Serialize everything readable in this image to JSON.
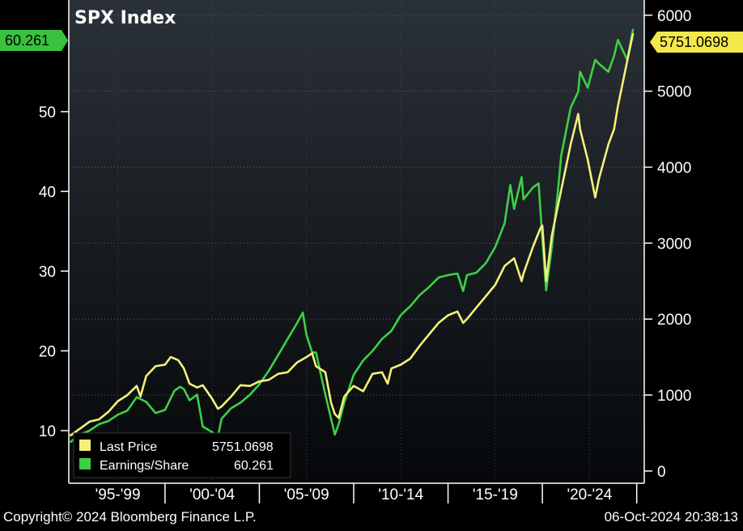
{
  "footer": {
    "copyright": "Copyright© 2024 Bloomberg Finance L.P.",
    "timestamp": "06-Oct-2024 20:38:13"
  },
  "colors": {
    "background": "#000000",
    "plot_top": "#2a3138",
    "plot_bottom": "#06080a",
    "price": "#f5ef7a",
    "eps": "#3fcf46",
    "eps_tag": "#39c23f",
    "price_tag": "#f2e84a"
  },
  "chart_data": {
    "type": "line",
    "title": "SPX Index",
    "x_axis": {
      "range": [
        1994.9,
        2025.4
      ],
      "period_labels": [
        "'95-'99",
        "'00-'04",
        "'05-'09",
        "'10-'14",
        "'15-'19",
        "'20-'24"
      ],
      "dividers": [
        2000,
        2005,
        2010,
        2015,
        2020,
        2025
      ]
    },
    "y_left": {
      "label": "",
      "range": [
        3.5,
        64
      ],
      "ticks": [
        10,
        20,
        30,
        40,
        50
      ]
    },
    "y_right": {
      "label": "",
      "range": [
        -150,
        6200
      ],
      "ticks": [
        0,
        1000,
        2000,
        3000,
        4000,
        5000,
        6000
      ]
    },
    "grid": true,
    "legend": {
      "position": "bottom-left",
      "entries": [
        {
          "name": "Last Price",
          "value": "5751.0698"
        },
        {
          "name": "Earnings/Share",
          "value": "60.261"
        }
      ]
    },
    "last_value_tags": {
      "left": "60.261",
      "right": "5751.0698"
    },
    "series": [
      {
        "name": "Last Price",
        "axis": "right",
        "x": [
          1995.0,
          1995.5,
          1996.0,
          1996.5,
          1997.0,
          1997.5,
          1998.0,
          1998.5,
          1998.7,
          1999.0,
          1999.5,
          2000.0,
          2000.3,
          2000.7,
          2001.0,
          2001.3,
          2001.7,
          2002.0,
          2002.5,
          2002.8,
          2003.0,
          2003.5,
          2004.0,
          2004.5,
          2005.0,
          2005.5,
          2006.0,
          2006.5,
          2007.0,
          2007.5,
          2007.8,
          2008.0,
          2008.5,
          2008.8,
          2009.0,
          2009.2,
          2009.5,
          2010.0,
          2010.5,
          2011.0,
          2011.5,
          2011.8,
          2012.0,
          2012.5,
          2013.0,
          2013.5,
          2014.0,
          2014.5,
          2015.0,
          2015.5,
          2015.8,
          2016.0,
          2016.5,
          2017.0,
          2017.5,
          2018.0,
          2018.5,
          2018.9,
          2019.0,
          2019.5,
          2019.9,
          2020.0,
          2020.2,
          2020.5,
          2021.0,
          2021.5,
          2021.9,
          2022.0,
          2022.4,
          2022.8,
          2023.0,
          2023.5,
          2023.8,
          2024.0,
          2024.5,
          2024.8
        ],
        "y": [
          470,
          560,
          650,
          680,
          780,
          920,
          1000,
          1120,
          980,
          1250,
          1380,
          1400,
          1500,
          1460,
          1350,
          1150,
          1100,
          1130,
          950,
          820,
          850,
          980,
          1130,
          1120,
          1180,
          1200,
          1280,
          1300,
          1430,
          1500,
          1550,
          1380,
          1300,
          900,
          750,
          700,
          980,
          1120,
          1050,
          1280,
          1300,
          1150,
          1350,
          1400,
          1480,
          1650,
          1800,
          1950,
          2050,
          2100,
          1950,
          2000,
          2150,
          2300,
          2450,
          2700,
          2800,
          2500,
          2600,
          2950,
          3200,
          3230,
          2500,
          3100,
          3700,
          4300,
          4700,
          4500,
          4100,
          3600,
          3850,
          4300,
          4500,
          4800,
          5400,
          5751
        ]
      },
      {
        "name": "Earnings/Share",
        "axis": "left",
        "x": [
          1995.0,
          1995.5,
          1996.0,
          1996.5,
          1997.0,
          1997.5,
          1998.0,
          1998.5,
          1999.0,
          1999.5,
          2000.0,
          2000.5,
          2000.8,
          2001.0,
          2001.3,
          2001.7,
          2002.0,
          2002.5,
          2002.8,
          2003.0,
          2003.5,
          2004.0,
          2004.5,
          2005.0,
          2005.5,
          2006.0,
          2006.5,
          2007.0,
          2007.3,
          2007.5,
          2007.8,
          2008.0,
          2008.5,
          2009.0,
          2009.2,
          2009.5,
          2010.0,
          2010.5,
          2011.0,
          2011.5,
          2012.0,
          2012.5,
          2013.0,
          2013.5,
          2014.0,
          2014.5,
          2015.0,
          2015.5,
          2015.8,
          2016.0,
          2016.5,
          2017.0,
          2017.5,
          2018.0,
          2018.3,
          2018.5,
          2018.9,
          2019.0,
          2019.5,
          2019.8,
          2020.0,
          2020.2,
          2020.5,
          2020.8,
          2021.0,
          2021.5,
          2021.9,
          2022.0,
          2022.4,
          2022.8,
          2023.0,
          2023.5,
          2023.8,
          2024.0,
          2024.5,
          2024.8
        ],
        "y": [
          8.6,
          9.5,
          10.0,
          10.8,
          11.2,
          12.0,
          12.5,
          14.2,
          13.6,
          12.2,
          12.6,
          15.0,
          15.5,
          15.2,
          13.8,
          14.5,
          10.5,
          9.8,
          9.2,
          11.5,
          12.8,
          13.5,
          14.5,
          15.8,
          17.5,
          19.5,
          21.5,
          23.5,
          24.8,
          22.0,
          19.8,
          19.8,
          14.5,
          9.5,
          10.8,
          13.5,
          17.0,
          18.8,
          20.0,
          21.5,
          22.5,
          24.5,
          25.6,
          27.0,
          28.0,
          29.2,
          29.5,
          29.7,
          27.5,
          29.5,
          29.8,
          31.0,
          33.0,
          36.0,
          40.8,
          37.8,
          41.8,
          39.0,
          40.5,
          41.0,
          34.0,
          27.6,
          33.0,
          39.5,
          44.5,
          50.5,
          52.5,
          55.0,
          53.0,
          56.5,
          56.0,
          55.0,
          57.0,
          59.0,
          56.5,
          60.261
        ]
      }
    ]
  }
}
